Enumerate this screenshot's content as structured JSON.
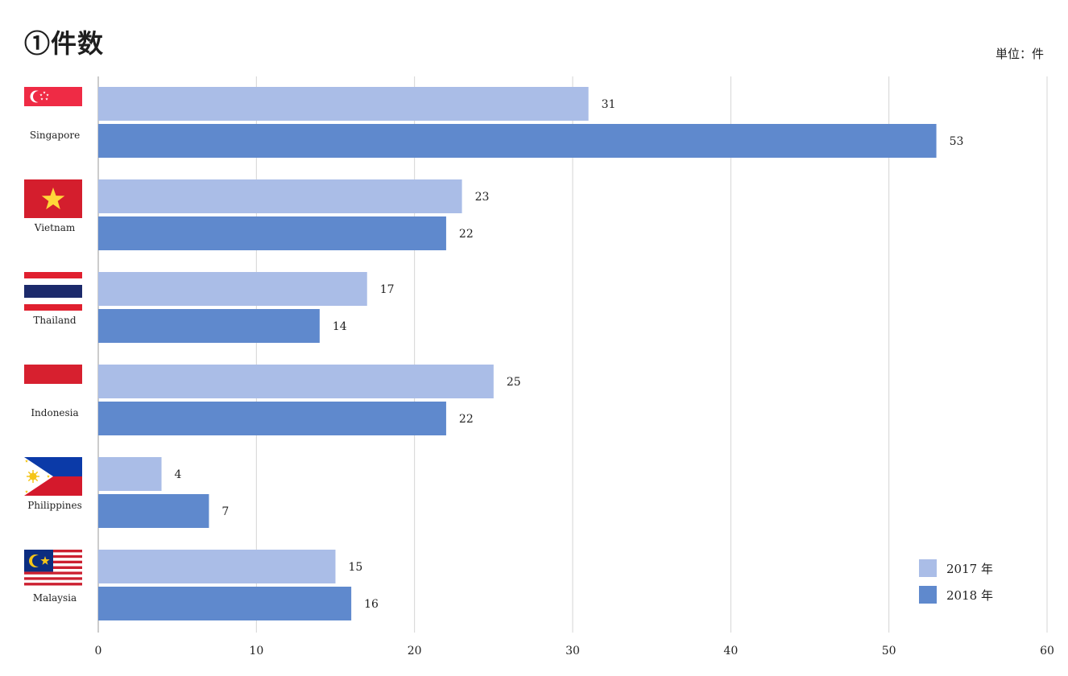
{
  "chart_data": {
    "type": "bar",
    "orientation": "horizontal",
    "title": "①件数",
    "unit": "単位：件",
    "categories": [
      "Singapore",
      "Vietnam",
      "Thailand",
      "Indonesia",
      "Philippines",
      "Malaysia"
    ],
    "series": [
      {
        "name": "2017 年",
        "values": [
          31,
          23,
          17,
          25,
          4,
          15
        ],
        "color": "#aabde7"
      },
      {
        "name": "2018 年",
        "values": [
          53,
          22,
          14,
          22,
          7,
          16
        ],
        "color": "#5f89cd"
      }
    ],
    "xlim": [
      0,
      60
    ],
    "xticks": [
      "0",
      "10",
      "20",
      "30",
      "40",
      "50",
      "60"
    ],
    "grid": true,
    "legend_position": "bottom-right",
    "flags": [
      "singapore-flag-icon",
      "vietnam-flag-icon",
      "thailand-flag-icon",
      "indonesia-flag-icon",
      "philippines-flag-icon",
      "malaysia-flag-icon"
    ]
  }
}
